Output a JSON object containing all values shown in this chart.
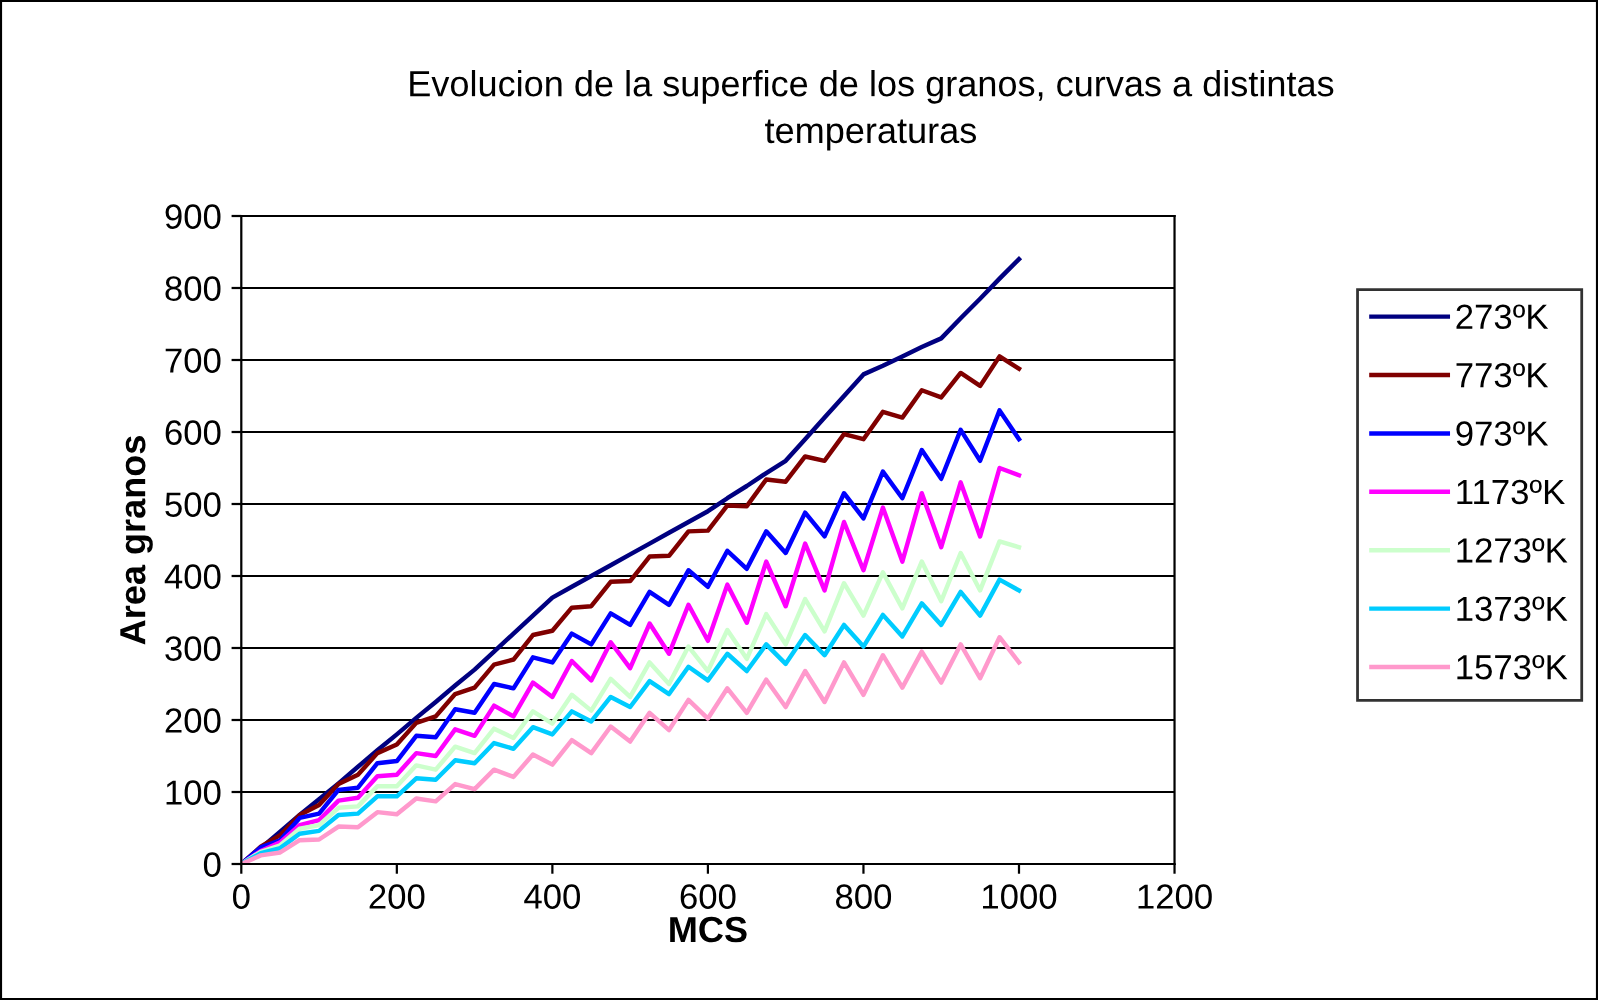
{
  "chart_data": {
    "type": "line",
    "title": "Evolucion de la superfice de los granos, curvas a distintas temperaturas",
    "xlabel": "MCS",
    "ylabel": "Area granos",
    "x": [
      0,
      25,
      50,
      75,
      100,
      125,
      150,
      175,
      200,
      225,
      250,
      275,
      300,
      325,
      350,
      375,
      400,
      425,
      450,
      475,
      500,
      525,
      550,
      575,
      600,
      625,
      650,
      675,
      700,
      725,
      750,
      775,
      800,
      825,
      850,
      875,
      900,
      925,
      950,
      975,
      1000
    ],
    "series": [
      {
        "name": "273ºK",
        "color": "#000080",
        "values": [
          0,
          22,
          45,
          68,
          90,
          112,
          135,
          158,
          180,
          203,
          225,
          248,
          270,
          295,
          320,
          345,
          370,
          385,
          400,
          415,
          430,
          445,
          460,
          475,
          490,
          508,
          525,
          543,
          560,
          590,
          620,
          650,
          680,
          692,
          705,
          718,
          730,
          758,
          785,
          813,
          840
        ]
      },
      {
        "name": "773ºK",
        "color": "#800000",
        "values": [
          0,
          24,
          40,
          68,
          82,
          111,
          124,
          154,
          166,
          196,
          205,
          236,
          245,
          277,
          284,
          318,
          324,
          356,
          358,
          392,
          393,
          427,
          428,
          462,
          463,
          498,
          497,
          534,
          531,
          566,
          560,
          597,
          590,
          628,
          620,
          658,
          648,
          682,
          664,
          705,
          688
        ]
      },
      {
        "name": "973ºK",
        "color": "#0000ff",
        "values": [
          0,
          23,
          33,
          64,
          70,
          103,
          106,
          140,
          143,
          178,
          176,
          215,
          210,
          250,
          244,
          287,
          280,
          320,
          305,
          348,
          332,
          378,
          360,
          408,
          385,
          435,
          410,
          462,
          432,
          488,
          455,
          515,
          480,
          545,
          508,
          575,
          535,
          603,
          560,
          630,
          590
        ]
      },
      {
        "name": "1173ºK",
        "color": "#ff00ff",
        "values": [
          0,
          18,
          30,
          54,
          61,
          88,
          92,
          122,
          124,
          154,
          150,
          187,
          178,
          220,
          205,
          252,
          232,
          282,
          255,
          308,
          272,
          334,
          292,
          360,
          310,
          388,
          335,
          420,
          358,
          445,
          380,
          475,
          408,
          495,
          420,
          515,
          440,
          530,
          455,
          550,
          540
        ]
      },
      {
        "name": "1273ºK",
        "color": "#ccffcc",
        "values": [
          0,
          17,
          26,
          49,
          54,
          78,
          80,
          108,
          108,
          137,
          131,
          163,
          154,
          188,
          175,
          212,
          195,
          235,
          213,
          257,
          232,
          280,
          250,
          302,
          268,
          325,
          285,
          347,
          305,
          368,
          323,
          390,
          345,
          405,
          355,
          420,
          365,
          432,
          380,
          448,
          440
        ]
      },
      {
        "name": "1373ºK",
        "color": "#00ccff",
        "values": [
          0,
          15,
          22,
          42,
          46,
          68,
          70,
          94,
          94,
          119,
          117,
          144,
          140,
          168,
          160,
          190,
          180,
          212,
          198,
          232,
          218,
          254,
          236,
          274,
          255,
          292,
          268,
          305,
          278,
          318,
          290,
          332,
          302,
          346,
          316,
          362,
          332,
          378,
          345,
          395,
          380
        ]
      },
      {
        "name": "1573ºK",
        "color": "#ff99cc",
        "values": [
          0,
          12,
          16,
          33,
          34,
          52,
          51,
          72,
          69,
          91,
          87,
          111,
          104,
          131,
          121,
          152,
          138,
          172,
          154,
          191,
          170,
          210,
          186,
          228,
          202,
          244,
          210,
          256,
          218,
          268,
          225,
          280,
          235,
          290,
          245,
          295,
          252,
          305,
          258,
          315,
          280
        ]
      }
    ],
    "xlim": [
      0,
      1200
    ],
    "xticks": [
      0,
      200,
      400,
      600,
      800,
      1000,
      1200
    ],
    "ylim": [
      0,
      900
    ],
    "yticks": [
      0,
      100,
      200,
      300,
      400,
      500,
      600,
      700,
      800,
      900
    ],
    "grid": "y",
    "legend": "right",
    "marker": "none",
    "line_style": "solid"
  }
}
